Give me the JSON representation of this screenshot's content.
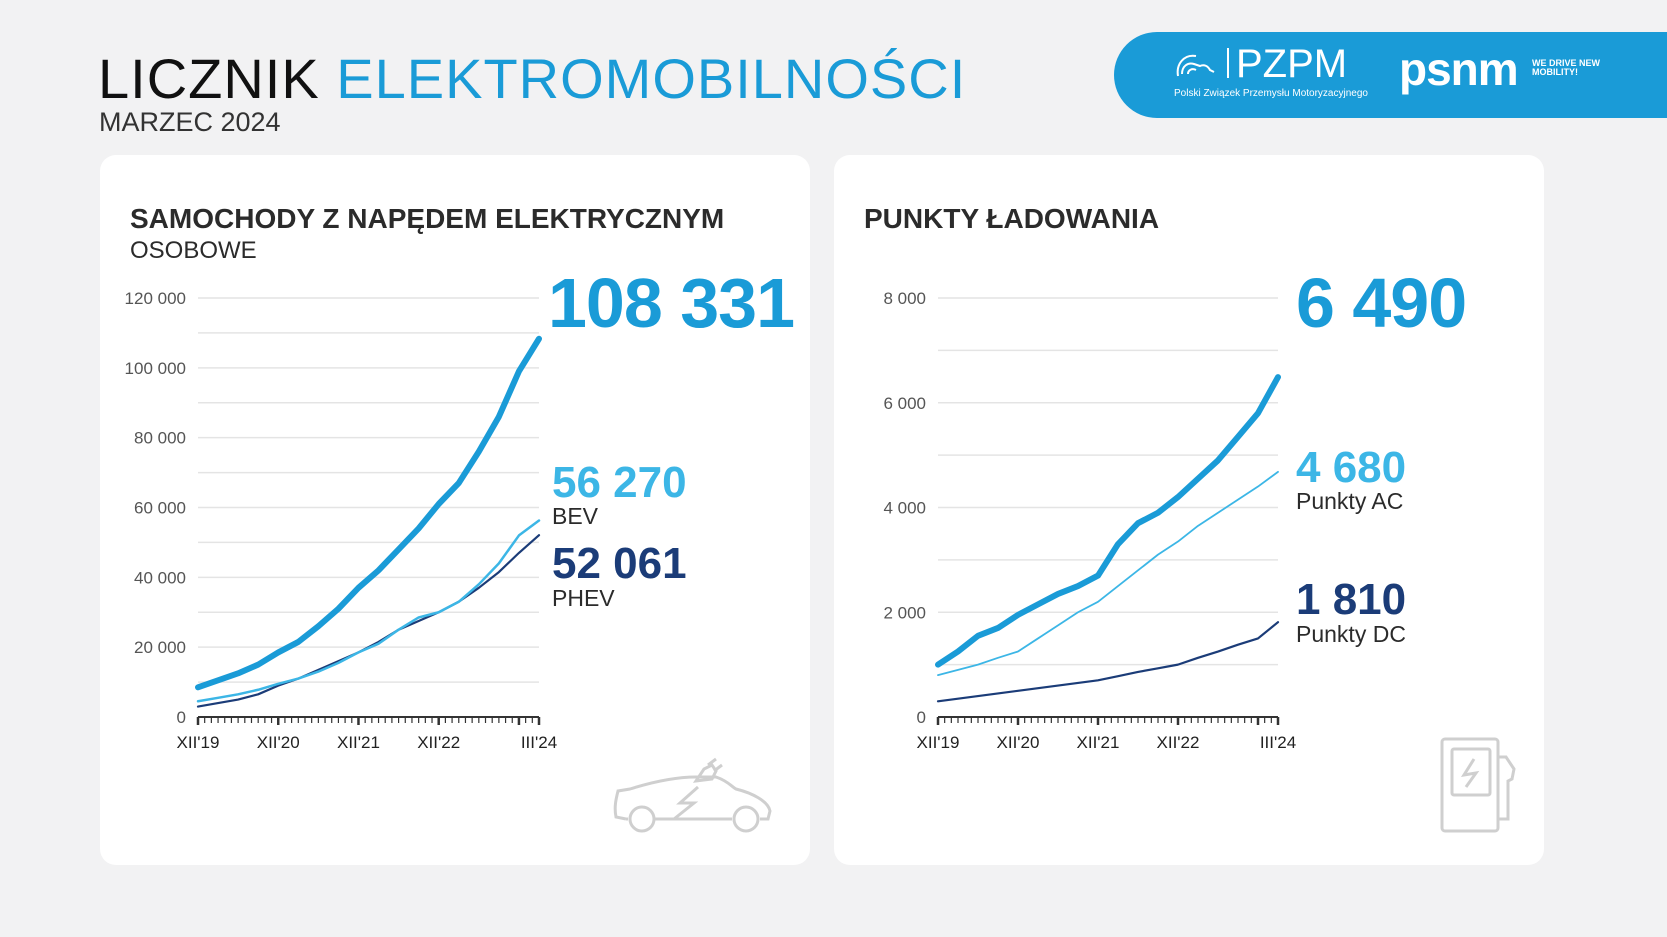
{
  "header": {
    "title_part1": "LICZNIK",
    "title_part2": "ELEKTROMOBILNOŚCI",
    "subtitle": "MARZEC 2024"
  },
  "banner": {
    "pzpm": "PZPM",
    "pzpm_sub": "Polski Związek Przemysłu Motoryzacyjnego",
    "psnm": "psnm",
    "psnm_tagline": "WE DRIVE NEW MOBILITY!",
    "color": "#1a9bd7"
  },
  "colors": {
    "total": "#1a9bd7",
    "secondary": "#3cb6e6",
    "tertiary": "#1b3c78",
    "axis": "#333333",
    "grid": "#e4e4e4"
  },
  "cards": [
    {
      "title": "SAMOCHODY Z NAPĘDEM ELEKTRYCZNYM",
      "subtitle": "OSOBOWE",
      "total": "108 331",
      "s1_value": "56 270",
      "s1_label": "BEV",
      "s2_value": "52 061",
      "s2_label": "PHEV",
      "icon": "electric-car-icon"
    },
    {
      "title": "PUNKTY ŁADOWANIA",
      "total": "6 490",
      "s1_value": "4 680",
      "s1_label": "Punkty AC",
      "s2_value": "1 810",
      "s2_label": "Punkty DC",
      "icon": "charging-station-icon"
    }
  ],
  "chart_data": [
    {
      "type": "line",
      "ylim": [
        0,
        120000
      ],
      "yticks": [
        "0",
        "20 000",
        "40 000",
        "60 000",
        "80 000",
        "100 000",
        "120 000"
      ],
      "ytick_values": [
        0,
        20000,
        40000,
        60000,
        80000,
        100000,
        120000
      ],
      "xtick_labels": [
        "XII'19",
        "XII'20",
        "XII'21",
        "XII'22",
        "III'24"
      ],
      "grid": true,
      "x": [
        "2019-12",
        "2020-03",
        "2020-06",
        "2020-09",
        "2020-12",
        "2021-03",
        "2021-06",
        "2021-09",
        "2021-12",
        "2022-03",
        "2022-06",
        "2022-09",
        "2022-12",
        "2023-03",
        "2023-06",
        "2023-09",
        "2023-12",
        "2024-03"
      ],
      "series": [
        {
          "name": "total",
          "values": [
            8500,
            10500,
            12500,
            15000,
            18500,
            21500,
            26000,
            31000,
            37000,
            42000,
            48000,
            54000,
            61000,
            67000,
            76000,
            86000,
            99000,
            108331
          ]
        },
        {
          "name": "BEV",
          "values": [
            4500,
            5500,
            6500,
            7800,
            9500,
            11000,
            13000,
            15500,
            18500,
            21000,
            25000,
            28500,
            30000,
            33000,
            38000,
            44000,
            52000,
            56270
          ]
        },
        {
          "name": "PHEV",
          "values": [
            3000,
            4000,
            5000,
            6500,
            9000,
            11000,
            13500,
            16000,
            18500,
            21500,
            25000,
            27500,
            30000,
            33000,
            37000,
            41500,
            47000,
            52061
          ]
        }
      ]
    },
    {
      "type": "line",
      "ylim": [
        0,
        8000
      ],
      "yticks": [
        "0",
        "2 000",
        "4 000",
        "6 000",
        "8 000"
      ],
      "ytick_values": [
        0,
        2000,
        4000,
        6000,
        8000
      ],
      "xtick_labels": [
        "XII'19",
        "XII'20",
        "XII'21",
        "XII'22",
        "III'24"
      ],
      "grid": true,
      "x": [
        "2019-12",
        "2020-03",
        "2020-06",
        "2020-09",
        "2020-12",
        "2021-03",
        "2021-06",
        "2021-09",
        "2021-12",
        "2022-03",
        "2022-06",
        "2022-09",
        "2022-12",
        "2023-03",
        "2023-06",
        "2023-09",
        "2023-12",
        "2024-03"
      ],
      "series": [
        {
          "name": "total",
          "values": [
            1000,
            1250,
            1550,
            1700,
            1950,
            2150,
            2350,
            2500,
            2700,
            3300,
            3700,
            3900,
            4200,
            4550,
            4900,
            5350,
            5800,
            6490
          ]
        },
        {
          "name": "Punkty AC",
          "values": [
            800,
            900,
            1000,
            1130,
            1250,
            1500,
            1750,
            2000,
            2200,
            2500,
            2800,
            3100,
            3350,
            3650,
            3900,
            4150,
            4400,
            4680
          ]
        },
        {
          "name": "Punkty DC",
          "values": [
            300,
            350,
            400,
            450,
            500,
            550,
            600,
            650,
            700,
            780,
            860,
            930,
            1000,
            1130,
            1250,
            1380,
            1500,
            1810
          ]
        }
      ]
    }
  ]
}
